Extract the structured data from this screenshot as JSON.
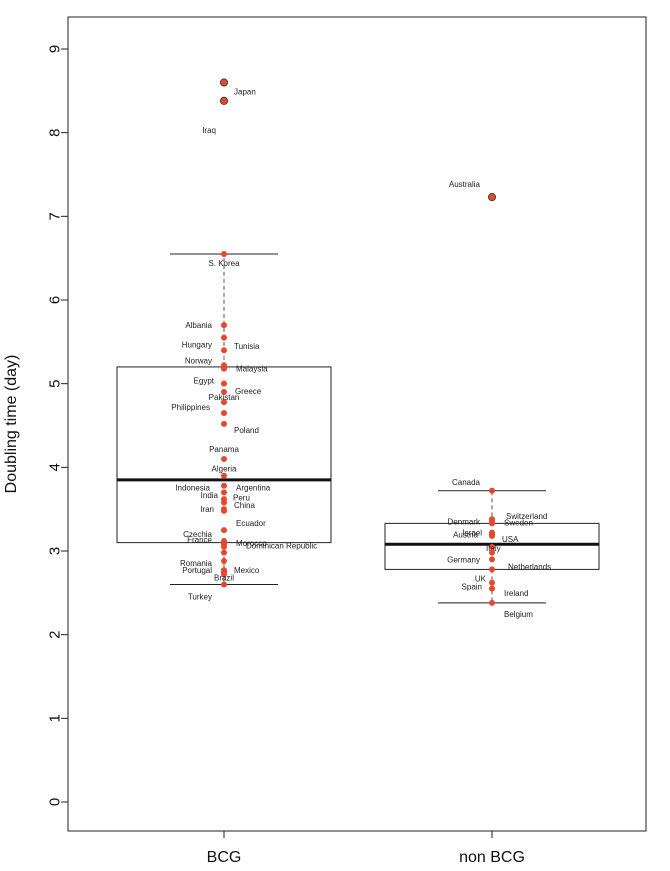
{
  "chart_data": {
    "type": "boxplot",
    "ylabel": "Doubling time (day)",
    "ylim": [
      0,
      9
    ],
    "yticks": [
      0,
      1,
      2,
      3,
      4,
      5,
      6,
      7,
      8,
      9
    ],
    "categories": [
      "BCG",
      "non BCG"
    ],
    "point_color": "#e8472c",
    "outlier_color": "#e8472c",
    "boxes": [
      {
        "category": "BCG",
        "q1": 3.1,
        "median": 3.85,
        "q3": 5.2,
        "whisker_low": 2.6,
        "whisker_high": 6.55,
        "points": [
          {
            "label": "Japan",
            "y": 8.6,
            "outlier": true
          },
          {
            "label": "Iraq",
            "y": 8.38,
            "outlier": true
          },
          {
            "label": "S. Korea",
            "y": 6.55
          },
          {
            "label": "Albania",
            "y": 5.7
          },
          {
            "label": "Hungary",
            "y": 5.55
          },
          {
            "label": "Tunisia",
            "y": 5.4
          },
          {
            "label": "Norway",
            "y": 5.22
          },
          {
            "label": "Malaysia",
            "y": 5.18
          },
          {
            "label": "Egypt",
            "y": 5.0
          },
          {
            "label": "Greece",
            "y": 4.9
          },
          {
            "label": "Pakistan",
            "y": 4.78
          },
          {
            "label": "Philippines",
            "y": 4.65
          },
          {
            "label": "Poland",
            "y": 4.52
          },
          {
            "label": "Panama",
            "y": 4.1
          },
          {
            "label": "Algeria",
            "y": 3.9
          },
          {
            "label": "Argentina",
            "y": 3.78
          },
          {
            "label": "Indonesia",
            "y": 3.7
          },
          {
            "label": "India",
            "y": 3.62
          },
          {
            "label": "Peru",
            "y": 3.58
          },
          {
            "label": "China",
            "y": 3.5
          },
          {
            "label": "Iran",
            "y": 3.48
          },
          {
            "label": "Ecuador",
            "y": 3.25
          },
          {
            "label": "Czechia",
            "y": 3.12
          },
          {
            "label": "France",
            "y": 3.08
          },
          {
            "label": "Morocco",
            "y": 3.05
          },
          {
            "label": "Dominican Republic",
            "y": 2.98
          },
          {
            "label": "Romania",
            "y": 2.88
          },
          {
            "label": "Portugal",
            "y": 2.77
          },
          {
            "label": "Mexico",
            "y": 2.75
          },
          {
            "label": "Brazil",
            "y": 2.72
          },
          {
            "label": "Turkey",
            "y": 2.6
          }
        ]
      },
      {
        "category": "non BCG",
        "q1": 2.78,
        "median": 3.08,
        "q3": 3.33,
        "whisker_low": 2.38,
        "whisker_high": 3.72,
        "points": [
          {
            "label": "Australia",
            "y": 7.23,
            "outlier": true
          },
          {
            "label": "Canada",
            "y": 3.72
          },
          {
            "label": "Switzerland",
            "y": 3.38
          },
          {
            "label": "Sweden",
            "y": 3.35
          },
          {
            "label": "Denmark",
            "y": 3.33
          },
          {
            "label": "Israel",
            "y": 3.22
          },
          {
            "label": "Austria",
            "y": 3.2
          },
          {
            "label": "USA",
            "y": 3.18
          },
          {
            "label": "Italy",
            "y": 3.05
          },
          {
            "label": "Germany",
            "y": 2.98
          },
          {
            "label": "Netherlands",
            "y": 2.9
          },
          {
            "label": "UK",
            "y": 2.78
          },
          {
            "label": "Ireland",
            "y": 2.62
          },
          {
            "label": "Spain",
            "y": 2.55
          },
          {
            "label": "Belgium",
            "y": 2.38
          }
        ]
      }
    ]
  }
}
